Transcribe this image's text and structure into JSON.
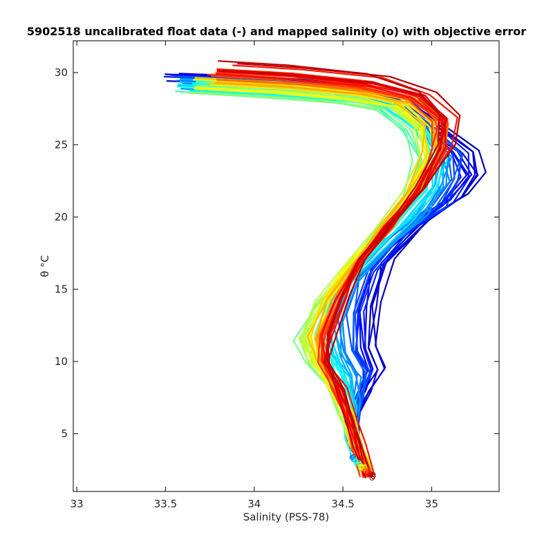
{
  "chart_data": {
    "type": "line",
    "title": "5902518 uncalibrated float data (-) and mapped salinity (o) with objective error",
    "xlabel": "Salinity (PSS-78)",
    "ylabel": "θ °C",
    "xlim": [
      32.98,
      35.38
    ],
    "ylim": [
      1.0,
      32.2
    ],
    "xticks": [
      33,
      33.5,
      34,
      34.5,
      35
    ],
    "xtick_labels": [
      "33",
      "33.5",
      "34",
      "34.5",
      "35"
    ],
    "yticks": [
      5,
      10,
      15,
      20,
      25,
      30
    ],
    "ytick_labels": [
      "5",
      "10",
      "15",
      "20",
      "25",
      "30"
    ],
    "grid": false,
    "colormap": "jet",
    "colors": {
      "early_profiles": "#0000b4",
      "late_profiles": "#a00000",
      "axis": "#262626"
    },
    "series_representative": [
      {
        "color_pos": 0.02,
        "salinity": [
          33.55,
          33.95,
          34.45,
          34.8,
          35.0,
          35.22,
          35.28,
          35.2,
          35.0,
          34.75,
          34.7,
          34.68,
          34.72,
          34.65,
          34.55,
          34.57,
          34.62
        ],
        "theta": [
          29.6,
          29.4,
          29.0,
          28.2,
          26.5,
          24.5,
          23.0,
          21.5,
          20.0,
          17.0,
          14.0,
          11.0,
          9.5,
          8.0,
          6.0,
          4.0,
          2.2
        ]
      },
      {
        "color_pos": 0.5,
        "salinity": [
          33.65,
          34.1,
          34.5,
          34.75,
          34.9,
          34.95,
          34.85,
          34.7,
          34.52,
          34.35,
          34.25,
          34.32,
          34.42,
          34.5,
          34.55,
          34.62
        ],
        "theta": [
          28.9,
          28.6,
          28.2,
          27.5,
          26.0,
          24.0,
          21.5,
          19.0,
          16.5,
          14.0,
          11.5,
          10.0,
          8.5,
          6.5,
          4.5,
          2.2
        ]
      },
      {
        "color_pos": 0.98,
        "salinity": [
          33.85,
          34.25,
          34.7,
          34.98,
          35.12,
          35.1,
          34.95,
          34.78,
          34.62,
          34.52,
          34.45,
          34.42,
          34.5,
          34.55,
          34.6,
          34.65
        ],
        "theta": [
          30.5,
          30.2,
          29.6,
          28.6,
          27.0,
          25.0,
          22.0,
          19.5,
          17.0,
          14.5,
          12.0,
          10.0,
          8.0,
          6.0,
          4.0,
          2.0
        ]
      }
    ],
    "mapped_salinity_markers": {
      "salinity_range": [
        34.55,
        34.67
      ],
      "theta_range": [
        2.0,
        3.4
      ]
    }
  }
}
